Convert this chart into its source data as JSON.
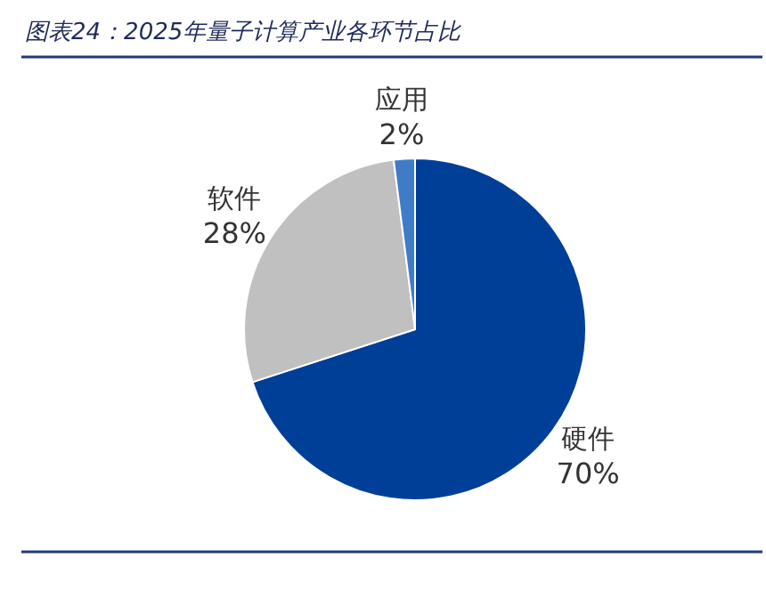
{
  "chart_data": {
    "type": "pie",
    "title": "图表24：2025年量子计算产业各环节占比",
    "categories": [
      "硬件",
      "软件",
      "应用"
    ],
    "values": [
      70,
      28,
      2
    ],
    "colors": [
      "#003f98",
      "#c0c0c0",
      "#3f7cc8"
    ],
    "value_labels": [
      "70%",
      "28%",
      "2%"
    ]
  }
}
